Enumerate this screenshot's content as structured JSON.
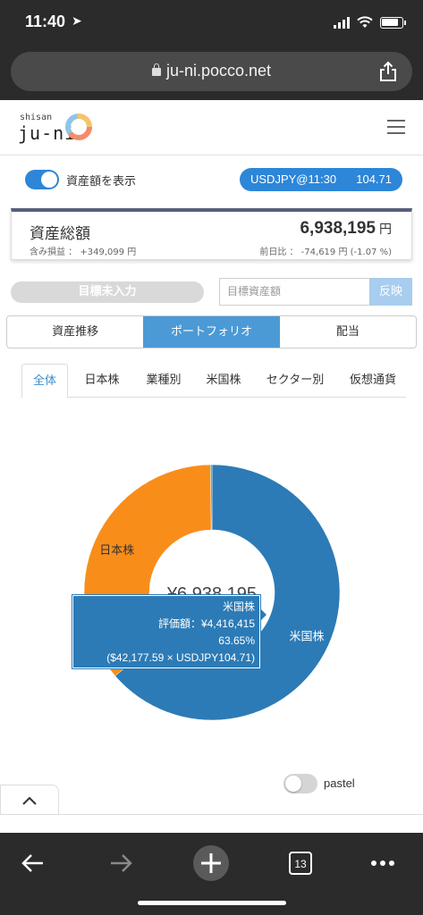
{
  "status_bar": {
    "time": "11:40"
  },
  "browser": {
    "url": "ju-ni.pocco.net",
    "tab_count": "13"
  },
  "header": {
    "logo_small": "shisan",
    "logo_main": "ju-ni"
  },
  "toggle": {
    "label": "資産額を表示",
    "on": true
  },
  "fx": {
    "label": "USDJPY@11:30",
    "value": "104.71"
  },
  "summary": {
    "title": "資産総額",
    "amount": "6,938,195",
    "unit": "円",
    "gain_text": "含み損益 ： +349,099 円",
    "day_change_text": "前日比 ： -74,619 円 (-1.07 %)"
  },
  "goal": {
    "status_label": "目標未入力",
    "input_placeholder": "目標資産額",
    "apply_label": "反映"
  },
  "main_tabs": [
    {
      "label": "資産推移",
      "active": false
    },
    {
      "label": "ポートフォリオ",
      "active": true
    },
    {
      "label": "配当",
      "active": false
    }
  ],
  "sub_tabs": [
    {
      "label": "全体",
      "active": true
    },
    {
      "label": "日本株",
      "active": false
    },
    {
      "label": "業種別",
      "active": false
    },
    {
      "label": "米国株",
      "active": false
    },
    {
      "label": "セクター別",
      "active": false
    },
    {
      "label": "仮想通貨",
      "active": false
    }
  ],
  "chart_data": {
    "type": "pie",
    "donut": true,
    "center_label": "¥6,938,195",
    "series": [
      {
        "name": "米国株",
        "value": 4416415,
        "percent": 63.65,
        "color": "#2c7bb6"
      },
      {
        "name": "日本株",
        "value": 2509270,
        "percent": 36.17,
        "color": "#f98d1a"
      },
      {
        "name": "",
        "value": 12510,
        "percent": 0.18,
        "color": "#3aa13a"
      }
    ],
    "tooltip": {
      "name": "米国株",
      "line_value": "評価額：¥4,416,415",
      "line_percent": "63.65%",
      "line_usd": "($42,177.59 × USDJPY104.71)"
    }
  },
  "pastel": {
    "label": "pastel",
    "on": false
  }
}
